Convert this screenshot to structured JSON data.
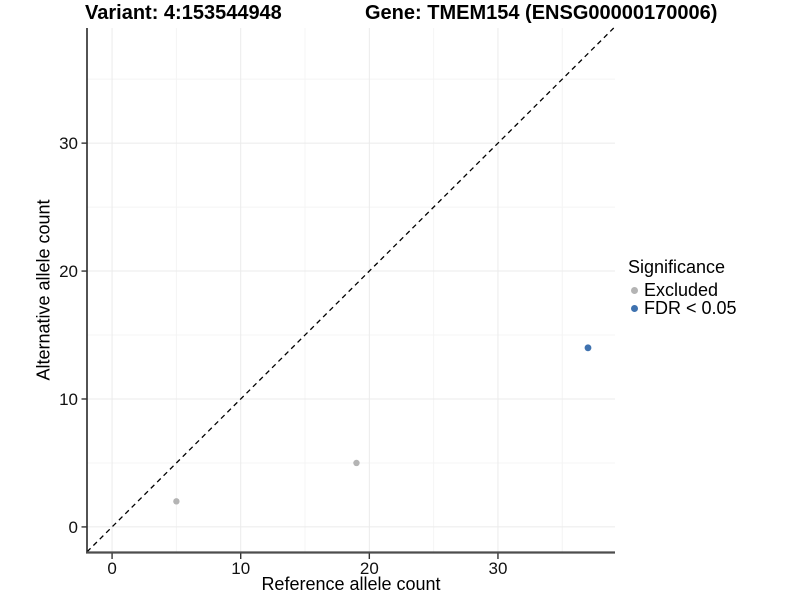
{
  "titles": {
    "variant": "Variant: 4:153544948",
    "gene": "Gene: TMEM154 (ENSG00000170006)"
  },
  "chart_data": {
    "type": "scatter",
    "xlabel": "Reference allele count",
    "ylabel": "Alternative allele count",
    "xlim": [
      -1.95,
      39.1
    ],
    "ylim": [
      -2.0,
      39.0
    ],
    "xticks": [
      0,
      10,
      20,
      30
    ],
    "yticks": [
      0,
      10,
      20,
      30
    ],
    "xticks_minor": [
      5,
      15,
      25,
      35
    ],
    "yticks_minor": [
      5,
      15,
      25,
      35
    ],
    "grid": "major+minor",
    "identity_line": {
      "equation": "y = x",
      "style": "dashed",
      "color": "#000000"
    },
    "series": [
      {
        "name": "Excluded",
        "color": "#b4b4b4",
        "point_radius": 3.2,
        "points": [
          [
            5,
            2
          ],
          [
            19,
            5
          ]
        ]
      },
      {
        "name": "FDR < 0.05",
        "color": "#3f72af",
        "point_radius": 3.4,
        "points": [
          [
            37,
            14
          ]
        ]
      }
    ],
    "legend": {
      "title": "Significance",
      "position": "right",
      "entries": [
        {
          "label": "Excluded",
          "color": "#b4b4b4"
        },
        {
          "label": "FDR < 0.05",
          "color": "#3f72af"
        }
      ]
    },
    "colors": {
      "grid_major": "#ebebeb",
      "grid_minor": "#f4f4f4",
      "axis_line_left": "#1a1a1a",
      "axis_line_bottom": "#4d4d4d",
      "tick": "#333333",
      "tick_label": "#111111"
    }
  }
}
